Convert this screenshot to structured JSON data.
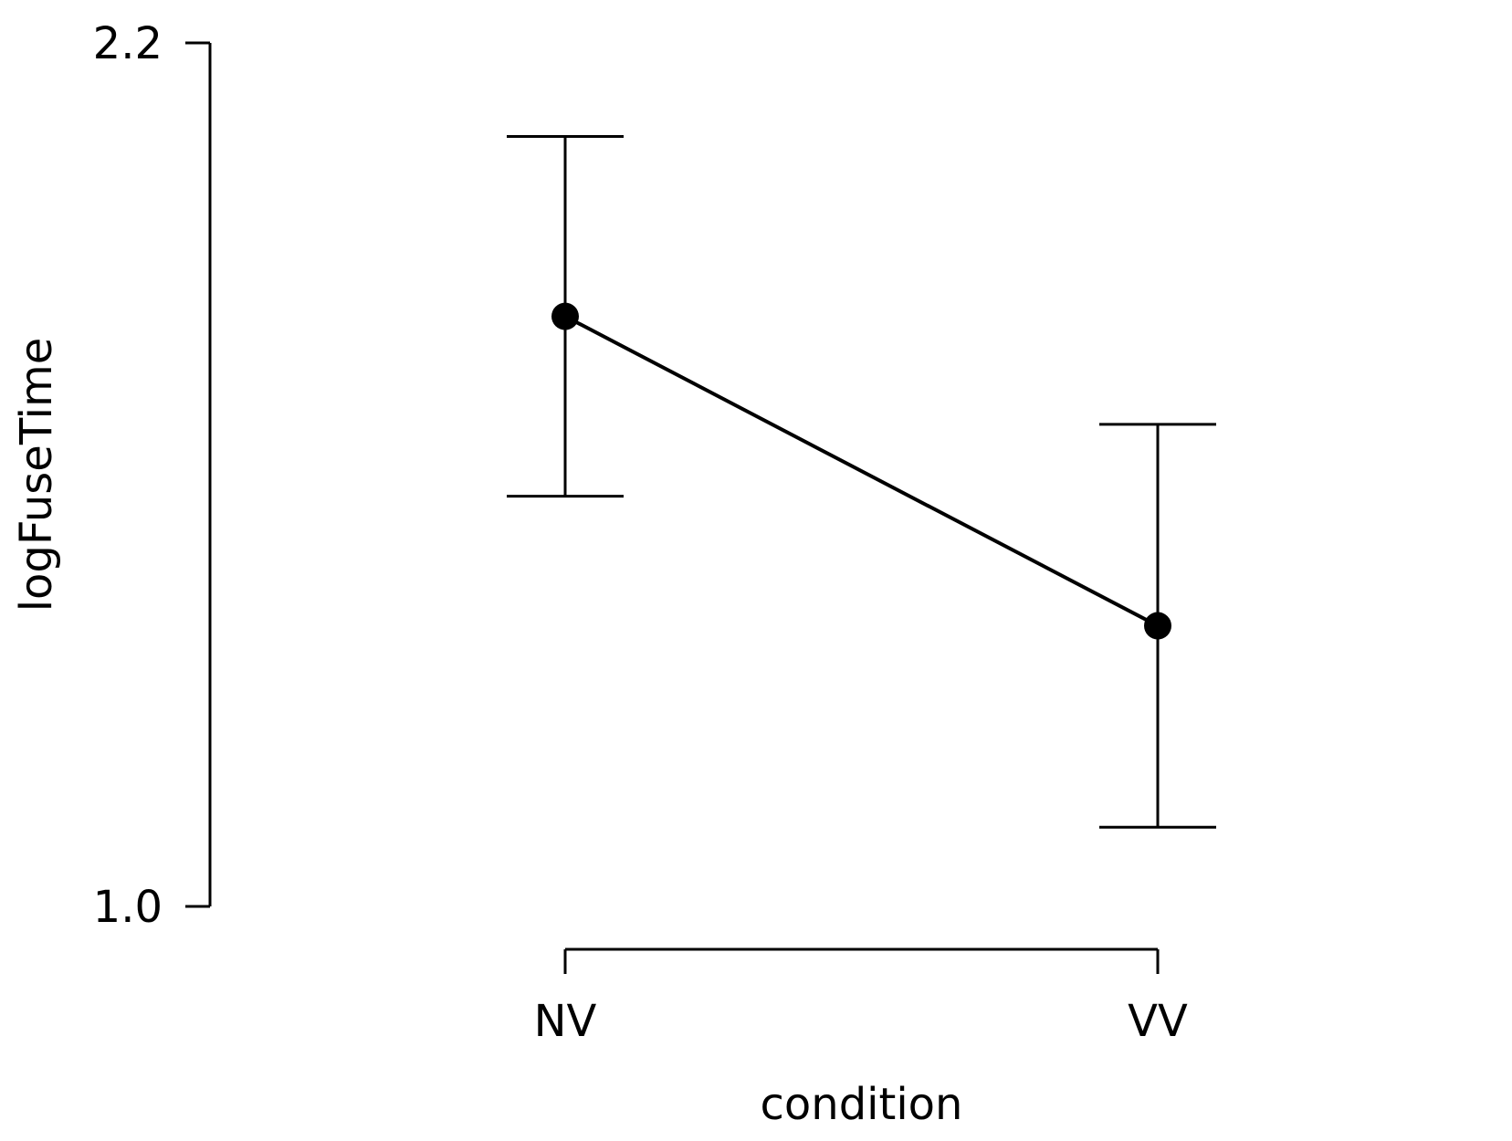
{
  "chart_data": {
    "type": "line",
    "title": "",
    "xlabel": "condition",
    "ylabel": "logFuseTime",
    "categories": [
      "NV",
      "VV"
    ],
    "ylim": [
      1.0,
      2.2
    ],
    "yticks": [
      1.0,
      2.2
    ],
    "ytick_labels": [
      "1.0",
      "2.2"
    ],
    "grid": false,
    "legend": "none",
    "series": [
      {
        "values": [
          1.82,
          1.39
        ],
        "error_low": [
          1.57,
          1.11
        ],
        "error_high": [
          2.07,
          1.67
        ]
      }
    ],
    "colors": {
      "line": "#000000",
      "marker": "#000000"
    }
  }
}
